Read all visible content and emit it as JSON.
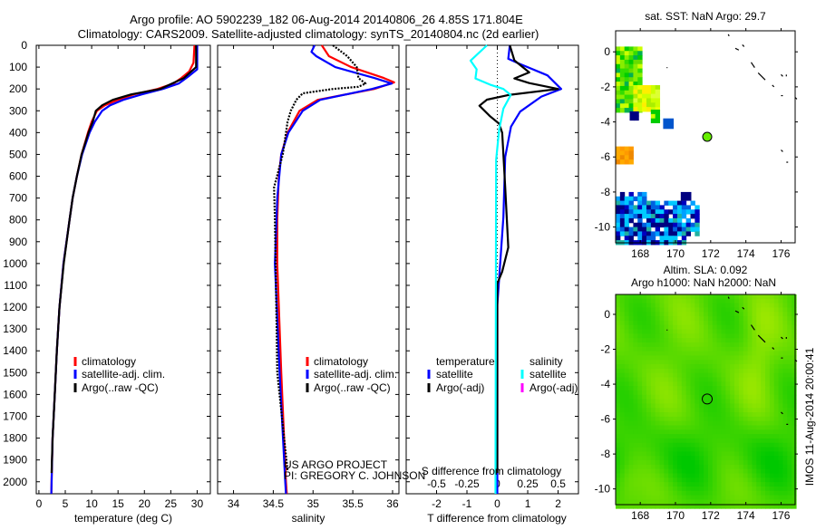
{
  "title": {
    "line1": "Argo profile: AO 5902239_182 06-Aug-2014 20140806_26 4.85S 171.804E",
    "line2": "Climatology: CARS2009. Satellite-adjusted climatology: synTS_20140804.nc (2d earlier)"
  },
  "credits": {
    "project": "US ARGO PROJECT",
    "pi": "PI: GREGORY C. JOHNSON"
  },
  "timestamp": "IMOS 11-Aug-2014 20:00:41",
  "colors": {
    "climatology": "#ff0000",
    "satellite": "#0000ff",
    "argo": "#000000",
    "sal_satellite": "#00ffff",
    "sal_argo": "#ff00ff"
  },
  "chart_data": [
    {
      "type": "line",
      "id": "temperature",
      "xlabel": "temperature (deg C)",
      "ylabel": "",
      "xlim": [
        -0.5,
        32.5
      ],
      "ylim": [
        0,
        2055
      ],
      "y_reversed": true,
      "xticks": [
        0,
        5,
        10,
        15,
        20,
        25,
        30
      ],
      "yticks": [
        0,
        100,
        200,
        300,
        400,
        500,
        600,
        700,
        800,
        900,
        1000,
        1100,
        1200,
        1300,
        1400,
        1500,
        1600,
        1700,
        1800,
        1900,
        2000
      ],
      "legend": [
        "climatology",
        "satellite-adj. clim.",
        "Argo(..raw -QC)"
      ],
      "series": [
        {
          "name": "climatology",
          "color": "#ff0000",
          "depth": [
            0,
            80,
            120,
            150,
            175,
            200,
            225,
            250,
            275,
            300,
            350,
            400,
            500,
            600,
            700,
            800,
            1000,
            1200,
            1400,
            1600,
            1800,
            2000,
            2055
          ],
          "values": [
            29.5,
            29.3,
            28.5,
            27,
            25.5,
            22.5,
            18,
            15,
            12.5,
            11,
            10,
            9.3,
            8.1,
            7.2,
            6.4,
            5.8,
            4.65,
            3.9,
            3.4,
            3,
            2.6,
            2.4,
            2.35
          ]
        },
        {
          "name": "satellite-adj. clim.",
          "color": "#0000ff",
          "depth": [
            0,
            110,
            140,
            175,
            200,
            225,
            250,
            275,
            300,
            350,
            400,
            500,
            600,
            700,
            800,
            1000,
            1200,
            1400,
            1600,
            1800,
            2000,
            2055
          ],
          "values": [
            30,
            30,
            28.5,
            26.5,
            23.5,
            19.5,
            16,
            13.5,
            12,
            10.6,
            9.6,
            8.2,
            7.2,
            6.4,
            5.8,
            4.65,
            3.9,
            3.4,
            3,
            2.6,
            2.4,
            2.35
          ]
        },
        {
          "name": "Argo(..raw -QC)",
          "color": "#000000",
          "depth": [
            0,
            100,
            150,
            200,
            225,
            250,
            275,
            300,
            350,
            400,
            500,
            600,
            700,
            800,
            1000,
            1200,
            1400,
            1600,
            1800,
            1960
          ],
          "values": [
            29.8,
            29.8,
            27.5,
            23,
            17.5,
            14,
            12,
            10.8,
            10.2,
            9.4,
            8.1,
            7.2,
            6.4,
            5.8,
            4.7,
            3.9,
            3.4,
            3,
            2.6,
            2.4
          ]
        }
      ]
    },
    {
      "type": "line",
      "id": "salinity",
      "xlabel": "salinity",
      "xlim": [
        33.8,
        36.08
      ],
      "ylim": [
        0,
        2055
      ],
      "y_reversed": true,
      "xticks": [
        "34",
        "34.5",
        "35",
        "35.5",
        "36"
      ],
      "legend": [
        "climatology",
        "satellite-adj. clim.",
        "Argo(..raw -QC)"
      ],
      "series": [
        {
          "name": "climatology",
          "color": "#ff0000",
          "depth": [
            0,
            50,
            100,
            150,
            170,
            200,
            250,
            300,
            400,
            500,
            600,
            800,
            1000,
            1500,
            2000,
            2055
          ],
          "values": [
            35.11,
            35.2,
            35.48,
            35.89,
            36.02,
            35.77,
            35.06,
            34.83,
            34.68,
            34.6,
            34.57,
            34.55,
            34.55,
            34.6,
            34.66,
            34.67
          ]
        },
        {
          "name": "satellite-adj. clim.",
          "color": "#0000ff",
          "depth": [
            0,
            30,
            50,
            100,
            150,
            175,
            200,
            250,
            300,
            400,
            500,
            700,
            1000,
            1500,
            2000,
            2055
          ],
          "values": [
            35.02,
            34.98,
            35.04,
            35.28,
            35.77,
            35.99,
            35.74,
            35.09,
            34.87,
            34.69,
            34.6,
            34.55,
            34.52,
            34.58,
            34.65,
            34.66
          ]
        },
        {
          "name": "Argo(..raw -QC)",
          "color": "#000000",
          "depth": [
            0,
            50,
            100,
            150,
            175,
            190,
            200,
            220,
            250,
            300,
            350,
            400,
            500,
            650,
            800,
            1000,
            1500,
            1950
          ],
          "values": [
            35.25,
            35.43,
            35.55,
            35.57,
            35.66,
            35.57,
            35.25,
            34.87,
            34.79,
            34.72,
            34.68,
            34.66,
            34.62,
            34.51,
            34.52,
            34.53,
            34.55,
            34.68
          ]
        }
      ]
    },
    {
      "type": "line",
      "id": "difference",
      "xlabel": "T difference from climatology",
      "x2label": "S difference from climatology",
      "xlim": [
        -3.0,
        2.67
      ],
      "ylim": [
        0,
        2055
      ],
      "y_reversed": true,
      "xticks": [
        "-2",
        "-1",
        "0",
        "1",
        "2"
      ],
      "x2ticks": [
        "-0.5",
        "-0.25",
        "0",
        "0.25",
        "0.5"
      ],
      "legend": {
        "temperature_header": "temperature",
        "salinity_header": "salinity",
        "t_satellite": "satellite",
        "t_argo": "Argo(-adj)",
        "s_satellite": "satellite",
        "s_argo": "Argo(-adj)"
      },
      "series": [
        {
          "name": "temperature satellite",
          "color": "#0000ff",
          "depth": [
            0,
            62,
            83,
            138,
            200,
            235,
            304,
            373,
            512,
            788,
            1190,
            2055
          ],
          "values": [
            0.41,
            0.36,
            0.7,
            1.65,
            2.1,
            1.45,
            0.75,
            0.45,
            0.26,
            0.2,
            0,
            0
          ]
        },
        {
          "name": "temperature Argo(-adj)",
          "color": "#000000",
          "depth": [
            0,
            69,
            124,
            152,
            173,
            200,
            228,
            249,
            277,
            325,
            359,
            401,
            650,
            926,
            1037,
            1092,
            1960
          ],
          "values": [
            0.41,
            0.56,
            1.05,
            0.56,
            1.05,
            2.0,
            0.36,
            -0.34,
            -0.59,
            -0.24,
            0.06,
            0.16,
            0.26,
            0.36,
            0.16,
            0,
            0
          ]
        },
        {
          "name": "salinity satellite",
          "color": "#00ffff",
          "depth": [
            0,
            70,
            110,
            152,
            180,
            200,
            228,
            290,
            387,
            525,
            2055
          ],
          "values": [
            -0.085,
            -0.22,
            -0.17,
            -0.18,
            -0.06,
            0.05,
            0.11,
            0.05,
            0.015,
            -0.01,
            -0.015
          ]
        }
      ]
    },
    {
      "type": "heatmap",
      "id": "sst_map",
      "title": "sat. SST: NaN Argo: 29.7",
      "xticks": [
        "168",
        "170",
        "172",
        "174",
        "176"
      ],
      "yticks": [
        "0",
        "-2",
        "-4",
        "-6",
        "-8",
        "-10"
      ],
      "xlim": [
        166.6,
        176.8
      ],
      "ylim": [
        -10.9,
        1.2
      ],
      "argo_location": {
        "lon": 171.804,
        "lat": -4.85
      }
    },
    {
      "type": "heatmap",
      "id": "sla_map",
      "title1": "Altim. SLA: 0.092",
      "title2": "Argo h1000: NaN h2000: NaN",
      "xticks": [
        "168",
        "170",
        "172",
        "174",
        "176"
      ],
      "yticks": [
        "0",
        "-2",
        "-4",
        "-6",
        "-8",
        "-10"
      ],
      "xlim": [
        166.6,
        176.8
      ],
      "ylim": [
        -10.9,
        1.14
      ],
      "argo_location": {
        "lon": 171.804,
        "lat": -4.85
      }
    }
  ]
}
